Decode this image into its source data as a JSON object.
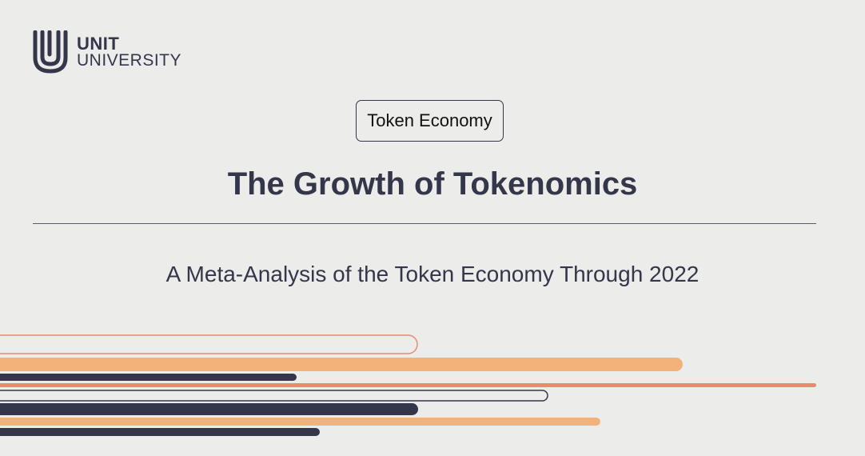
{
  "brand": {
    "name_line1": "UNIT",
    "name_line2": "UNIVERSITY",
    "logo_icon": "u-monogram-icon",
    "color": "#34364a"
  },
  "tag": {
    "label": "Token Economy"
  },
  "title": "The Growth of Tokenomics",
  "subtitle": "A Meta-Analysis of the Token Economy Through 2022",
  "colors": {
    "background": "#ececeb",
    "navy": "#34364a",
    "orange": "#f2b27a",
    "coral": "#ea8a6e"
  }
}
